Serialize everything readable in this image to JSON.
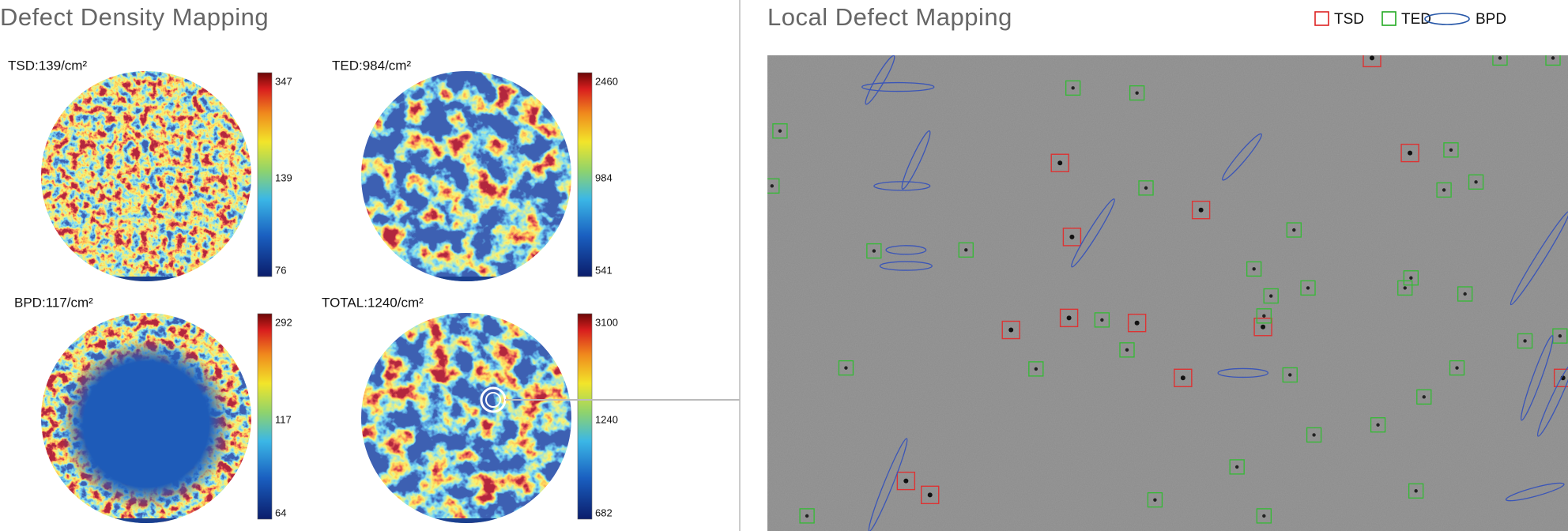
{
  "left_panel": {
    "title": "Defect Density Mapping",
    "maps": [
      {
        "label": "TSD:139/cm²",
        "scale_ticks": [
          "347",
          "139",
          "76"
        ]
      },
      {
        "label": "TED:984/cm²",
        "scale_ticks": [
          "2460",
          "984",
          "541"
        ]
      },
      {
        "label": "BPD:117/cm²",
        "scale_ticks": [
          "292",
          "117",
          "64"
        ]
      },
      {
        "label": "TOTAL:1240/cm²",
        "scale_ticks": [
          "3100",
          "1240",
          "682"
        ]
      }
    ]
  },
  "right_panel": {
    "title": "Local Defect Mapping",
    "legend": [
      "TSD",
      "TED",
      "BPD"
    ]
  }
}
